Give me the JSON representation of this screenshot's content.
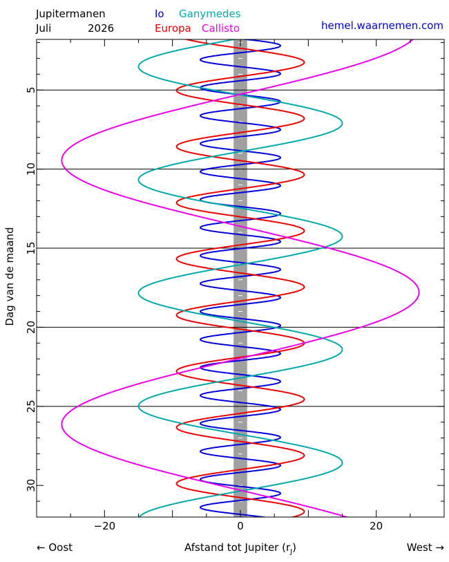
{
  "header": {
    "title": "Jupitermanen",
    "month": "Juli",
    "year": "2026",
    "site": "hemel.waarnemen.com"
  },
  "chart_data": {
    "type": "line",
    "xlabel": "Afstand tot Jupiter (r",
    "xlabel_sub": "J",
    "xlabel_close": ")",
    "ylabel": "Dag van de maand",
    "left_arrow_label": "← Oost",
    "right_arrow_label": "West →",
    "xlim": [
      -30,
      30
    ],
    "ylim": [
      32,
      1.8
    ],
    "xticks": [
      -20,
      0,
      20
    ],
    "xtick_labels": [
      "−20",
      "0",
      "20"
    ],
    "yticks": [
      5,
      10,
      15,
      20,
      25,
      30
    ],
    "ytick_labels": [
      "5",
      "10",
      "15",
      "20",
      "25",
      "30"
    ],
    "grid_y_days": [
      5,
      10,
      15,
      20,
      25
    ],
    "jupiter_band_halfwidth": 1,
    "colors": {
      "io": "#0000dd",
      "europa": "#ee0000",
      "ganymedes": "#00aaaa",
      "callisto": "#ee00ee",
      "jupiter": "#a0a0a0"
    },
    "series": [
      {
        "name": "Io",
        "key": "io",
        "amplitude": 5.9,
        "period_days": 1.769,
        "max_west_day": 2.2
      },
      {
        "name": "Europa",
        "key": "europa",
        "amplitude": 9.4,
        "period_days": 3.551,
        "max_west_day": 3.25
      },
      {
        "name": "Ganymedes",
        "key": "ganymedes",
        "amplitude": 15.0,
        "period_days": 7.155,
        "max_west_day": 7.1
      },
      {
        "name": "Callisto",
        "key": "callisto",
        "amplitude": 26.3,
        "period_days": 16.69,
        "max_west_day": 1.1
      }
    ]
  }
}
